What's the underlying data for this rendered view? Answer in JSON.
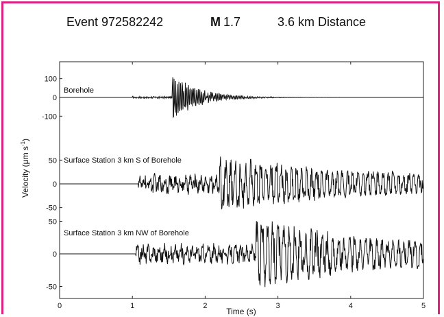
{
  "chart_data": {
    "type": "line",
    "title": {
      "event": "Event 972582242",
      "magnitude_symbol": "M",
      "magnitude_value": "1.7",
      "distance": "3.6 km Distance"
    },
    "xlabel": "Time (s)",
    "ylabel": "Velocity (μm s",
    "ylabel_sup": "-1",
    "ylabel_close": ")",
    "xlim": [
      0,
      5
    ],
    "xticks": [
      0,
      1,
      2,
      3,
      4,
      5
    ],
    "grid": false,
    "panels": [
      {
        "name": "Borehole",
        "ylim": [
          -150,
          150
        ],
        "yticks": [
          100,
          0,
          -100
        ],
        "ytick_labels": [
          "100",
          "0",
          "-100"
        ],
        "onset": 1.0,
        "arrival": 1.55,
        "noise": 4,
        "peak": 140,
        "decay": 0.35,
        "period": 0.022,
        "max_after": 0.0
      },
      {
        "name": "Surface Station 3 km S of Borehole",
        "ylim": [
          -65,
          65
        ],
        "yticks": [
          50,
          0,
          -50
        ],
        "ytick_labels": [
          "50",
          "0",
          "-50"
        ],
        "onset": 1.08,
        "arrival": 2.2,
        "noise": 14,
        "peak": 62,
        "decay": 2.5,
        "period": 0.07,
        "max_after": 32
      },
      {
        "name": "Surface Station 3 km NW of Borehole",
        "ylim": [
          -60,
          60
        ],
        "yticks": [
          50,
          0,
          -50
        ],
        "ytick_labels": [
          "50",
          "0",
          "-50"
        ],
        "onset": 1.05,
        "arrival": 2.7,
        "noise": 10,
        "peak": 58,
        "decay": 2.0,
        "period": 0.075,
        "max_after": 30
      }
    ]
  }
}
